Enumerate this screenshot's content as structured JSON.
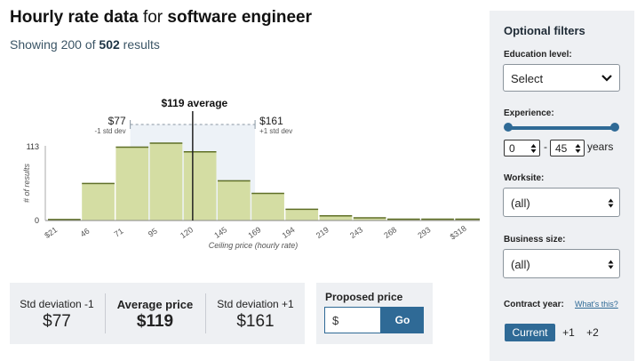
{
  "header": {
    "title_pre": "Hourly rate data",
    "title_mid": "for",
    "title_post": "software engineer",
    "subtitle_pre": "Showing 200 of",
    "subtitle_count": "502",
    "subtitle_post": "results"
  },
  "chart_data": {
    "type": "bar",
    "categories": [
      "$21",
      "46",
      "71",
      "95",
      "120",
      "145",
      "169",
      "194",
      "219",
      "243",
      "268",
      "293",
      "$318"
    ],
    "values": [
      1.5,
      56,
      111,
      117,
      104,
      60,
      41,
      17,
      7,
      4,
      2,
      2,
      2
    ],
    "xlabel": "Ceiling price (hourly rate)",
    "ylabel": "# of results",
    "ylim": [
      0,
      113
    ],
    "yticks": [
      "113",
      "0"
    ],
    "mean": 119,
    "minus_1sd": 77,
    "plus_1sd": 161,
    "average_label": "$119 average",
    "minus_label": "$77",
    "minus_sub": "-1 std dev",
    "plus_label": "$161",
    "plus_sub": "+1 std dev",
    "bar_color": "#d4dda3",
    "band_color": "#edf2f7",
    "colors": {
      "bar_stroke": "#5f6f26",
      "mean_line": "#222222"
    }
  },
  "stats": {
    "minus": {
      "label": "Std deviation -1",
      "value": "$77"
    },
    "avg": {
      "label": "Average price",
      "value": "$119"
    },
    "plus": {
      "label": "Std deviation +1",
      "value": "$161"
    }
  },
  "proposed": {
    "label": "Proposed price",
    "currency": "$",
    "button": "Go"
  },
  "sidebar": {
    "title": "Optional filters",
    "education": {
      "label": "Education level:",
      "value": "Select"
    },
    "experience": {
      "label": "Experience:",
      "min": "0",
      "max": "45",
      "unit": "years",
      "dash": "-"
    },
    "worksite": {
      "label": "Worksite:",
      "value": "(all)"
    },
    "business": {
      "label": "Business size:",
      "value": "(all)"
    },
    "contract": {
      "label": "Contract year:",
      "help": "What's this?",
      "options": [
        "Current",
        "+1",
        "+2"
      ],
      "selected": "Current"
    }
  },
  "colors": {
    "accent": "#2f6a96",
    "panel": "#eef0f3"
  }
}
